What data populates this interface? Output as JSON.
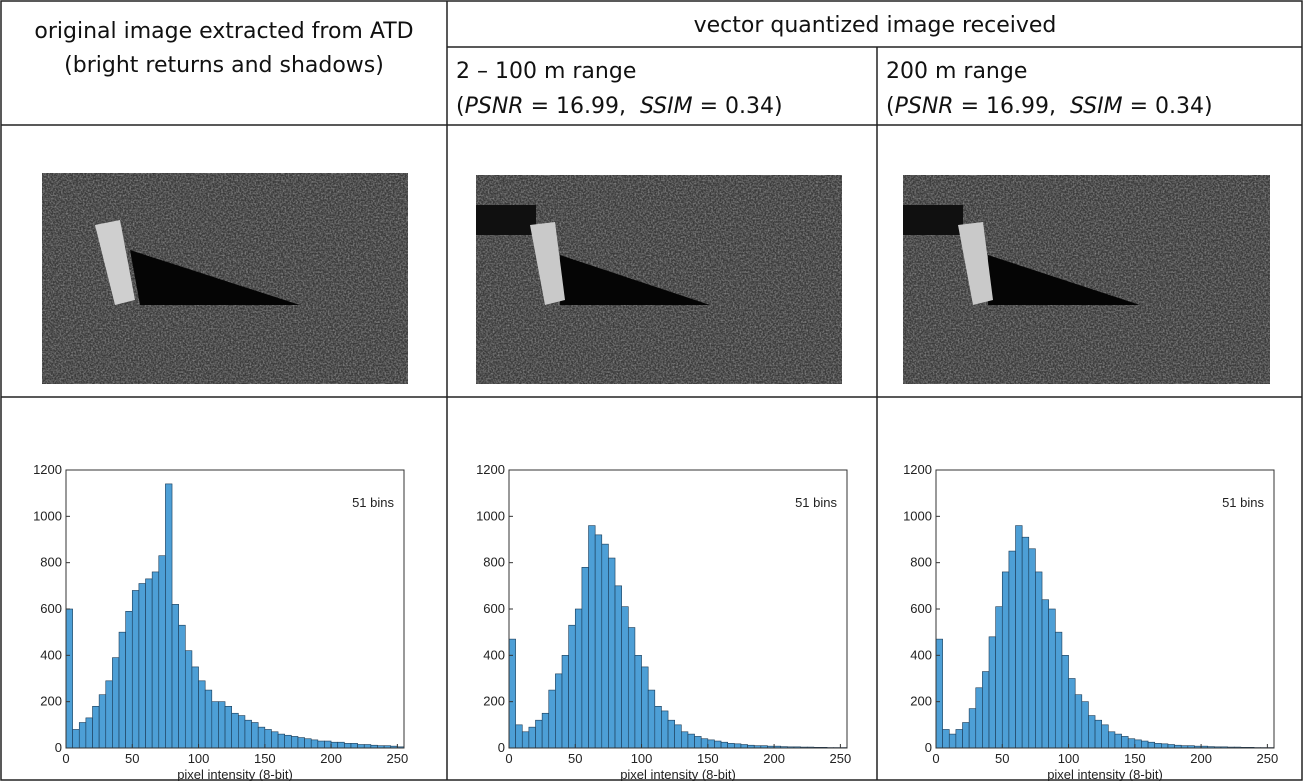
{
  "table": {
    "header": {
      "original": [
        "original image extracted from ATD",
        "(bright returns and shadows)"
      ],
      "group": "vector quantized image received",
      "columns": [
        {
          "range": "2 – 100 m range",
          "metrics": [
            "(",
            "PSNR",
            " = 16.99,  ",
            "SSIM",
            " = 0.34)"
          ]
        },
        {
          "range": "200 m range",
          "metrics": [
            "(",
            "PSNR",
            " = 16.99,  ",
            "SSIM",
            " = 0.34)"
          ]
        }
      ]
    }
  },
  "chart_data": [
    {
      "type": "histogram",
      "annotation": "51 bins",
      "x_label": "pixel intensity (8-bit)",
      "color": "#4d9fd6",
      "bins": [
        0,
        5,
        10,
        15,
        20,
        25,
        30,
        35,
        40,
        45,
        50,
        55,
        60,
        65,
        70,
        75,
        80,
        85,
        90,
        95,
        100,
        105,
        110,
        115,
        120,
        125,
        130,
        135,
        140,
        145,
        150,
        155,
        160,
        165,
        170,
        175,
        180,
        185,
        190,
        195,
        200,
        205,
        210,
        215,
        220,
        225,
        230,
        235,
        240,
        245,
        250,
        255
      ],
      "counts": [
        600,
        80,
        110,
        130,
        180,
        230,
        290,
        390,
        500,
        590,
        680,
        710,
        730,
        760,
        830,
        1140,
        620,
        530,
        420,
        350,
        290,
        250,
        200,
        200,
        180,
        150,
        140,
        120,
        110,
        90,
        80,
        70,
        60,
        55,
        50,
        45,
        40,
        35,
        30,
        30,
        25,
        25,
        20,
        20,
        15,
        15,
        12,
        10,
        10,
        8,
        5
      ],
      "xlim": [
        0,
        255
      ],
      "xticks": [
        0,
        50,
        100,
        150,
        200,
        250
      ],
      "ylim": [
        0,
        1200
      ],
      "yticks": [
        0,
        200,
        400,
        600,
        800,
        1000,
        1200
      ]
    },
    {
      "type": "histogram",
      "annotation": "51 bins",
      "x_label": "pixel intensity (8-bit)",
      "color": "#4d9fd6",
      "bins": [
        0,
        5,
        10,
        15,
        20,
        25,
        30,
        35,
        40,
        45,
        50,
        55,
        60,
        65,
        70,
        75,
        80,
        85,
        90,
        95,
        100,
        105,
        110,
        115,
        120,
        125,
        130,
        135,
        140,
        145,
        150,
        155,
        160,
        165,
        170,
        175,
        180,
        185,
        190,
        195,
        200,
        205,
        210,
        215,
        220,
        225,
        230,
        235,
        240,
        245,
        250,
        255
      ],
      "counts": [
        470,
        100,
        70,
        90,
        120,
        150,
        250,
        320,
        400,
        530,
        600,
        780,
        960,
        920,
        880,
        820,
        700,
        610,
        520,
        400,
        350,
        250,
        180,
        160,
        120,
        100,
        70,
        60,
        50,
        40,
        35,
        30,
        25,
        20,
        18,
        15,
        12,
        10,
        10,
        8,
        8,
        6,
        5,
        5,
        4,
        4,
        3,
        3,
        2,
        2,
        2
      ],
      "xlim": [
        0,
        255
      ],
      "xticks": [
        0,
        50,
        100,
        150,
        200,
        250
      ],
      "ylim": [
        0,
        1200
      ],
      "yticks": [
        0,
        200,
        400,
        600,
        800,
        1000,
        1200
      ]
    },
    {
      "type": "histogram",
      "annotation": "51 bins",
      "x_label": "pixel intensity (8-bit)",
      "color": "#4d9fd6",
      "bins": [
        0,
        5,
        10,
        15,
        20,
        25,
        30,
        35,
        40,
        45,
        50,
        55,
        60,
        65,
        70,
        75,
        80,
        85,
        90,
        95,
        100,
        105,
        110,
        115,
        120,
        125,
        130,
        135,
        140,
        145,
        150,
        155,
        160,
        165,
        170,
        175,
        180,
        185,
        190,
        195,
        200,
        205,
        210,
        215,
        220,
        225,
        230,
        235,
        240,
        245,
        250,
        255
      ],
      "counts": [
        470,
        80,
        60,
        80,
        110,
        170,
        260,
        330,
        480,
        610,
        760,
        850,
        960,
        910,
        860,
        760,
        640,
        600,
        500,
        400,
        300,
        230,
        200,
        140,
        120,
        100,
        70,
        60,
        50,
        40,
        35,
        30,
        25,
        20,
        18,
        15,
        12,
        10,
        10,
        8,
        8,
        6,
        5,
        5,
        4,
        4,
        3,
        3,
        2,
        2,
        2
      ],
      "xlim": [
        0,
        255
      ],
      "xticks": [
        0,
        50,
        100,
        150,
        200,
        250
      ],
      "ylim": [
        0,
        1200
      ],
      "yticks": [
        0,
        200,
        400,
        600,
        800,
        1000,
        1200
      ]
    }
  ]
}
